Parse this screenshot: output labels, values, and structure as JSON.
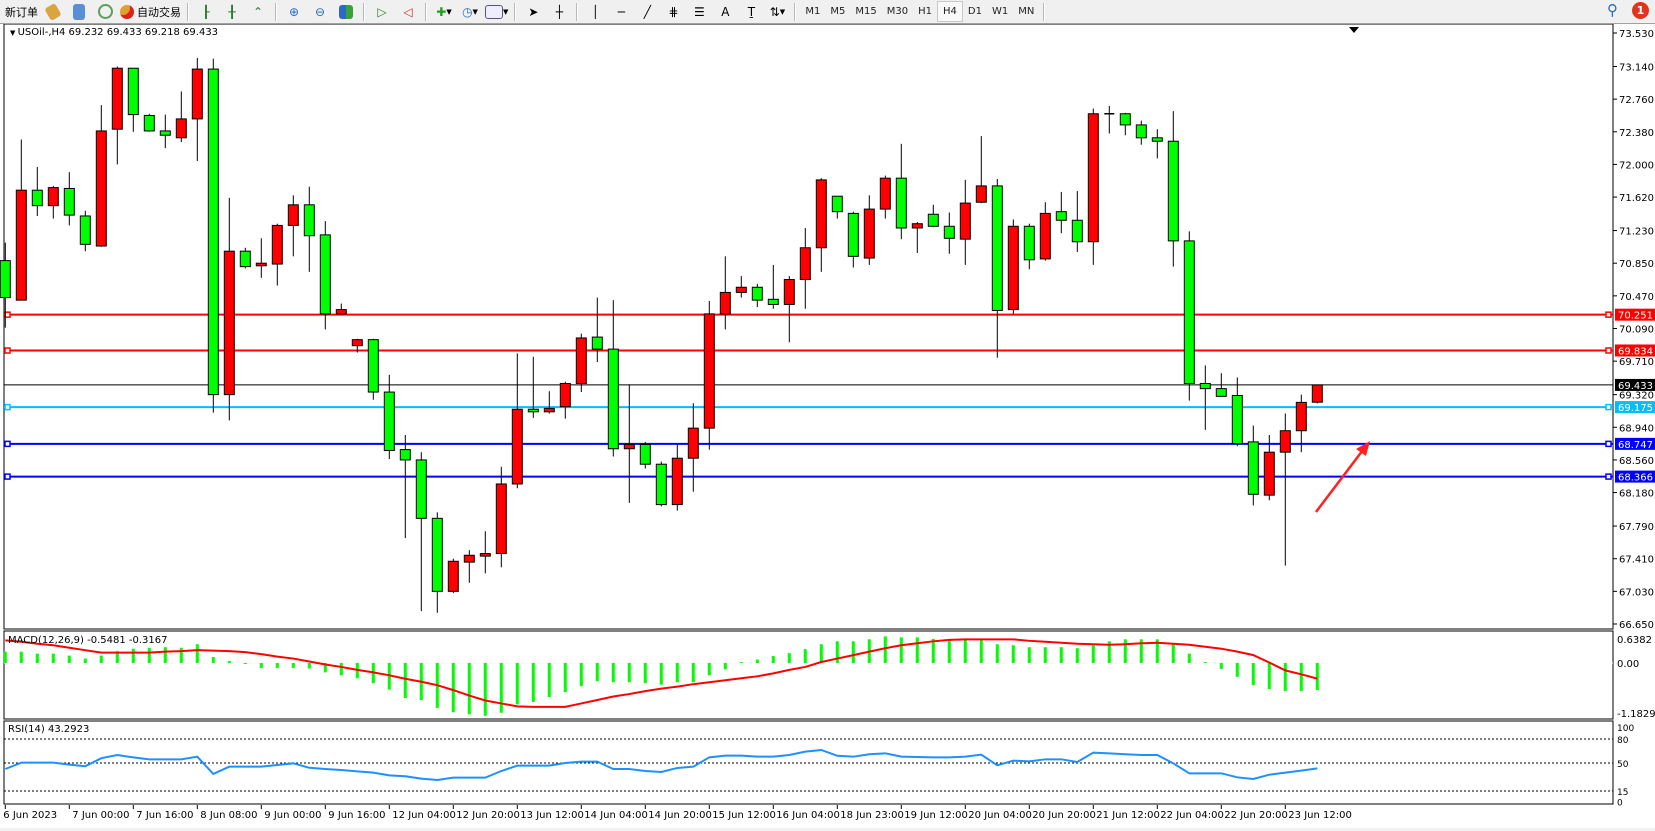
{
  "toolbar": {
    "new_order": "新订单",
    "auto_trading": "自动交易",
    "timeframes": [
      "M1",
      "M5",
      "M15",
      "M30",
      "H1",
      "H4",
      "D1",
      "W1",
      "MN"
    ],
    "active_timeframe": "H4",
    "notification_count": "1",
    "icons": [
      "new-order-icon",
      "history-icon",
      "cloud-icon",
      "signal-icon",
      "auto-trading-icon",
      "bar-chart-icon",
      "candlestick-icon",
      "line-chart-icon",
      "zoom-in-icon",
      "zoom-out-icon",
      "tile-windows-icon",
      "chart-shift-icon",
      "autoscroll-icon",
      "indicators-icon",
      "periods-icon",
      "templates-icon",
      "cursor-icon",
      "crosshair-icon",
      "vertical-line-icon",
      "horizontal-line-icon",
      "trendline-icon",
      "fibonacci-icon",
      "fibonacci-fan-icon",
      "text-icon",
      "text-label-icon",
      "arrows-icon",
      "search-icon",
      "notification-icon"
    ]
  },
  "chart": {
    "header": "USOil-,H4  69.232 69.433 69.218 69.433",
    "symbol": "USOil-",
    "timeframe": "H4",
    "bull_color": "#ff0000",
    "bear_color": "#00ff00",
    "price_ticks": [
      "73.530",
      "73.140",
      "72.760",
      "72.380",
      "72.000",
      "71.620",
      "71.230",
      "70.850",
      "70.470",
      "70.090",
      "69.710",
      "69.320",
      "68.940",
      "68.560",
      "68.180",
      "67.790",
      "67.410",
      "67.030",
      "66.650"
    ],
    "price_range": [
      66.65,
      73.53
    ],
    "levels": [
      {
        "price": 70.251,
        "label": "70.251",
        "color": "#ff0000"
      },
      {
        "price": 69.834,
        "label": "69.834",
        "color": "#ff0000"
      },
      {
        "price": 69.433,
        "label": "69.433",
        "color": "#000000"
      },
      {
        "price": 69.175,
        "label": "69.175",
        "color": "#00bfff"
      },
      {
        "price": 68.747,
        "label": "68.747",
        "color": "#0000ff"
      },
      {
        "price": 68.366,
        "label": "68.366",
        "color": "#0000ff"
      }
    ],
    "arrow_color": "#ff2020",
    "dates": [
      "6 Jun 2023",
      "7 Jun 00:00",
      "7 Jun 16:00",
      "8 Jun 08:00",
      "9 Jun 00:00",
      "9 Jun 16:00",
      "12 Jun 04:00",
      "12 Jun 20:00",
      "13 Jun 12:00",
      "14 Jun 04:00",
      "14 Jun 20:00",
      "15 Jun 12:00",
      "16 Jun 04:00",
      "18 Jun 23:00",
      "19 Jun 12:00",
      "20 Jun 04:00",
      "20 Jun 20:00",
      "21 Jun 12:00",
      "22 Jun 04:00",
      "22 Jun 20:00",
      "23 Jun 12:00"
    ]
  },
  "chart_data": {
    "type": "candlestick",
    "ohlc": [
      [
        70.88,
        71.09,
        70.1,
        70.45
      ],
      [
        70.42,
        72.29,
        70.42,
        71.7
      ],
      [
        71.7,
        71.97,
        71.4,
        71.52
      ],
      [
        71.52,
        71.75,
        71.37,
        71.73
      ],
      [
        71.72,
        71.91,
        71.29,
        71.41
      ],
      [
        71.4,
        71.46,
        70.99,
        71.07
      ],
      [
        71.05,
        72.69,
        71.04,
        72.39
      ],
      [
        72.41,
        73.14,
        72.0,
        73.12
      ],
      [
        73.12,
        73.12,
        72.38,
        72.58
      ],
      [
        72.57,
        72.59,
        72.38,
        72.39
      ],
      [
        72.39,
        72.58,
        72.19,
        72.34
      ],
      [
        72.31,
        72.85,
        72.26,
        72.53
      ],
      [
        72.53,
        73.24,
        72.04,
        73.11
      ],
      [
        73.11,
        73.23,
        69.11,
        69.32
      ],
      [
        69.32,
        71.61,
        69.02,
        70.99
      ],
      [
        70.99,
        71.03,
        70.79,
        70.81
      ],
      [
        70.82,
        71.14,
        70.68,
        70.85
      ],
      [
        70.84,
        71.31,
        70.59,
        71.29
      ],
      [
        71.29,
        71.64,
        70.93,
        71.53
      ],
      [
        71.53,
        71.74,
        70.75,
        71.17
      ],
      [
        71.18,
        71.34,
        70.08,
        70.26
      ],
      [
        70.26,
        70.38,
        70.26,
        70.31
      ],
      [
        69.89,
        69.97,
        69.81,
        69.96
      ],
      [
        69.96,
        69.97,
        69.26,
        69.35
      ],
      [
        69.35,
        69.55,
        68.57,
        68.67
      ],
      [
        68.68,
        68.85,
        67.65,
        68.56
      ],
      [
        68.56,
        68.65,
        66.8,
        67.88
      ],
      [
        67.88,
        67.95,
        66.78,
        67.03
      ],
      [
        67.03,
        67.41,
        67.01,
        67.38
      ],
      [
        67.37,
        67.51,
        67.13,
        67.45
      ],
      [
        67.44,
        67.73,
        67.24,
        67.47
      ],
      [
        67.47,
        68.48,
        67.31,
        68.28
      ],
      [
        68.28,
        69.8,
        68.23,
        69.15
      ],
      [
        69.15,
        69.76,
        69.05,
        69.12
      ],
      [
        69.12,
        69.36,
        69.1,
        69.16
      ],
      [
        69.18,
        69.47,
        69.04,
        69.45
      ],
      [
        69.45,
        70.03,
        69.35,
        69.98
      ],
      [
        69.99,
        70.45,
        69.7,
        69.85
      ],
      [
        69.85,
        70.42,
        68.6,
        68.69
      ],
      [
        68.69,
        69.44,
        68.06,
        68.74
      ],
      [
        68.74,
        68.77,
        68.46,
        68.51
      ],
      [
        68.51,
        68.54,
        68.02,
        68.04
      ],
      [
        68.04,
        68.74,
        67.97,
        68.58
      ],
      [
        68.58,
        69.22,
        68.19,
        68.93
      ],
      [
        68.93,
        70.41,
        68.68,
        70.26
      ],
      [
        70.26,
        70.93,
        70.08,
        70.51
      ],
      [
        70.51,
        70.7,
        70.45,
        70.57
      ],
      [
        70.57,
        70.61,
        70.34,
        70.42
      ],
      [
        70.43,
        70.83,
        70.32,
        70.37
      ],
      [
        70.37,
        70.7,
        69.93,
        70.66
      ],
      [
        70.66,
        71.26,
        70.32,
        71.03
      ],
      [
        71.03,
        71.84,
        70.75,
        71.82
      ],
      [
        71.63,
        71.63,
        71.37,
        71.45
      ],
      [
        71.43,
        71.45,
        70.8,
        70.93
      ],
      [
        70.91,
        71.64,
        70.83,
        71.48
      ],
      [
        71.48,
        71.87,
        71.37,
        71.84
      ],
      [
        71.84,
        72.24,
        71.13,
        71.26
      ],
      [
        71.26,
        71.33,
        70.97,
        71.31
      ],
      [
        71.42,
        71.53,
        71.27,
        71.28
      ],
      [
        71.28,
        71.44,
        70.96,
        71.14
      ],
      [
        71.13,
        71.82,
        70.83,
        71.55
      ],
      [
        71.56,
        72.33,
        71.55,
        71.75
      ],
      [
        71.75,
        71.83,
        69.75,
        70.3
      ],
      [
        70.31,
        71.36,
        70.26,
        71.28
      ],
      [
        71.28,
        71.31,
        70.78,
        70.89
      ],
      [
        70.9,
        71.56,
        70.88,
        71.43
      ],
      [
        71.45,
        71.68,
        71.2,
        71.35
      ],
      [
        71.35,
        71.69,
        70.98,
        71.1
      ],
      [
        71.1,
        72.65,
        70.83,
        72.59
      ],
      [
        72.59,
        72.68,
        72.36,
        72.585
      ],
      [
        72.59,
        72.6,
        72.34,
        72.46
      ],
      [
        72.46,
        72.51,
        72.23,
        72.31
      ],
      [
        72.31,
        72.41,
        72.07,
        72.27
      ],
      [
        72.27,
        72.62,
        70.81,
        71.11
      ],
      [
        71.11,
        71.22,
        69.25,
        69.45
      ],
      [
        69.45,
        69.66,
        68.91,
        69.39
      ],
      [
        69.39,
        69.57,
        69.3,
        69.3
      ],
      [
        69.31,
        69.52,
        68.72,
        68.75
      ],
      [
        68.77,
        68.96,
        68.03,
        68.16
      ],
      [
        68.15,
        68.85,
        68.09,
        68.65
      ],
      [
        68.65,
        69.1,
        67.33,
        68.9
      ],
      [
        68.9,
        69.32,
        68.65,
        69.23
      ],
      [
        69.232,
        69.433,
        69.218,
        69.433
      ]
    ],
    "macd": {
      "label": "MACD(12,26,9) -0.5481 -0.3167",
      "ticks": [
        "0.6382",
        "0.00",
        "-1.1829"
      ],
      "range": [
        -1.1829,
        0.6382
      ],
      "histogram_color": "#00ff00",
      "signal_color": "#ff0000",
      "histogram": [
        0.23,
        0.23,
        0.19,
        0.19,
        0.15,
        0.09,
        0.15,
        0.24,
        0.29,
        0.31,
        0.32,
        0.31,
        0.38,
        0.12,
        0.04,
        -0.02,
        -0.1,
        -0.1,
        -0.1,
        -0.11,
        -0.19,
        -0.25,
        -0.31,
        -0.41,
        -0.54,
        -0.71,
        -0.75,
        -0.91,
        -1.0,
        -1.04,
        -1.07,
        -1.01,
        -0.84,
        -0.79,
        -0.69,
        -0.59,
        -0.47,
        -0.37,
        -0.39,
        -0.39,
        -0.41,
        -0.44,
        -0.39,
        -0.39,
        -0.25,
        -0.13,
        0.02,
        0.07,
        0.14,
        0.2,
        0.28,
        0.38,
        0.44,
        0.44,
        0.48,
        0.54,
        0.52,
        0.52,
        0.49,
        0.47,
        0.47,
        0.47,
        0.38,
        0.36,
        0.32,
        0.32,
        0.32,
        0.3,
        0.36,
        0.44,
        0.48,
        0.48,
        0.48,
        0.38,
        0.19,
        0.02,
        -0.12,
        -0.28,
        -0.45,
        -0.53,
        -0.57,
        -0.57,
        -0.5481
      ],
      "signal": [
        0.46,
        0.43,
        0.39,
        0.36,
        0.31,
        0.26,
        0.21,
        0.21,
        0.21,
        0.21,
        0.23,
        0.24,
        0.26,
        0.25,
        0.24,
        0.22,
        0.18,
        0.13,
        0.09,
        0.03,
        -0.03,
        -0.08,
        -0.14,
        -0.19,
        -0.25,
        -0.32,
        -0.38,
        -0.45,
        -0.55,
        -0.66,
        -0.76,
        -0.82,
        -0.88,
        -0.89,
        -0.89,
        -0.89,
        -0.82,
        -0.75,
        -0.68,
        -0.63,
        -0.57,
        -0.52,
        -0.48,
        -0.43,
        -0.39,
        -0.35,
        -0.31,
        -0.27,
        -0.21,
        -0.14,
        -0.08,
        0.02,
        0.09,
        0.16,
        0.23,
        0.3,
        0.36,
        0.4,
        0.44,
        0.47,
        0.48,
        0.48,
        0.48,
        0.48,
        0.45,
        0.43,
        0.41,
        0.39,
        0.38,
        0.37,
        0.38,
        0.4,
        0.41,
        0.39,
        0.37,
        0.33,
        0.29,
        0.23,
        0.16,
        0.01,
        -0.15,
        -0.23,
        -0.3167
      ]
    },
    "rsi": {
      "label": "RSI(14) 43.2923",
      "ticks": [
        "100",
        "80",
        "50",
        "15",
        "0"
      ],
      "levels": [
        80,
        50,
        15
      ],
      "range": [
        0,
        100
      ],
      "color": "#1e90ff",
      "values": [
        42.5,
        50.4,
        50.4,
        50.4,
        48,
        46,
        56,
        60,
        57,
        54.6,
        54.6,
        54.6,
        57.9,
        36.3,
        45.4,
        45.4,
        45.4,
        47.5,
        49.6,
        44,
        42.5,
        41.3,
        39.5,
        37.9,
        34.6,
        33.5,
        30.5,
        28.8,
        31.7,
        31.7,
        31.7,
        40,
        46.7,
        46.7,
        46.7,
        50,
        51.7,
        51.7,
        42.5,
        42.5,
        40,
        38.8,
        43.8,
        45.4,
        57.1,
        59.2,
        59.2,
        58,
        58,
        60,
        64.2,
        66.3,
        59,
        57.9,
        61,
        62.1,
        58,
        57.5,
        57.1,
        57.1,
        58,
        60.4,
        47.1,
        52.9,
        52,
        54.6,
        54.6,
        51.3,
        62.9,
        62.1,
        61,
        60,
        60,
        49.6,
        37.1,
        37.1,
        37.1,
        32.1,
        30,
        35.4,
        38,
        40.5,
        43.29
      ]
    }
  }
}
